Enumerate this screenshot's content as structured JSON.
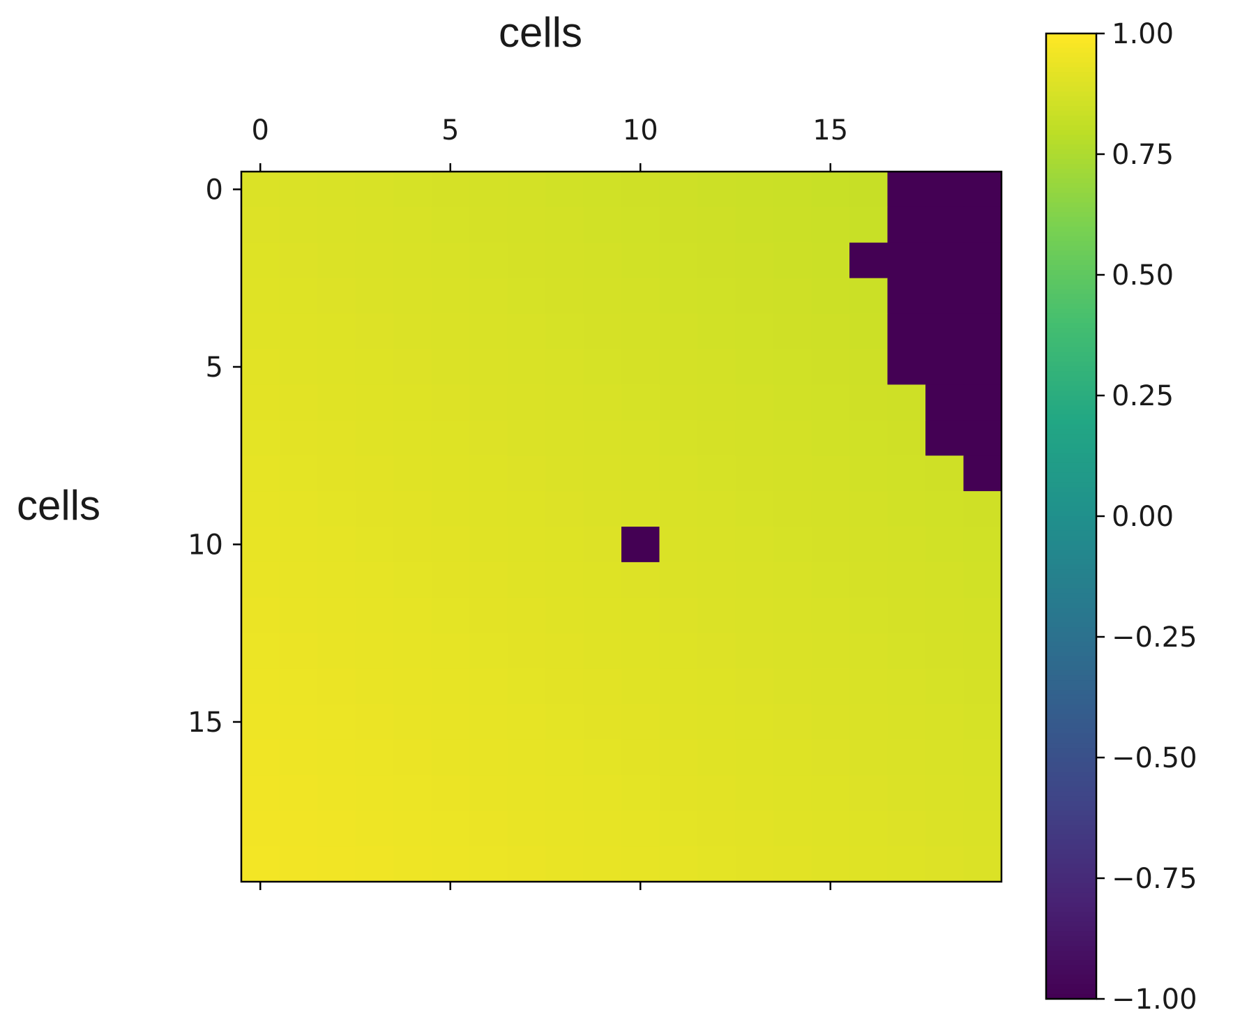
{
  "chart_data": {
    "type": "heatmap",
    "xlabel": "cells",
    "ylabel": "cells",
    "x_ticks": [
      "0",
      "5",
      "10",
      "15"
    ],
    "y_ticks": [
      "0",
      "5",
      "10",
      "15"
    ],
    "x_tick_positions": [
      0,
      5,
      10,
      15
    ],
    "y_tick_positions": [
      0,
      5,
      10,
      15
    ],
    "n_rows": 20,
    "n_cols": 20,
    "x_axis_position": "top",
    "grid": false,
    "colormap": "viridis",
    "clim": [
      -1.0,
      1.0
    ],
    "colorbar": {
      "position": "right",
      "ticks": [
        1.0,
        0.75,
        0.5,
        0.25,
        0.0,
        -0.25,
        -0.5,
        -0.75,
        -1.0
      ],
      "tick_labels": [
        "1.00",
        "0.75",
        "0.50",
        "0.25",
        "0.00",
        "−0.25",
        "−0.50",
        "−0.75",
        "−1.00"
      ]
    },
    "value_model": {
      "description": "smooth field, approx. 0.97 at bottom-left decreasing to 0.82 at top-right",
      "bottom_left": 0.97,
      "top_right": 0.82
    },
    "masked_value": -1.0,
    "masked_cells": [
      [
        0,
        17
      ],
      [
        0,
        18
      ],
      [
        0,
        19
      ],
      [
        1,
        17
      ],
      [
        1,
        18
      ],
      [
        1,
        19
      ],
      [
        2,
        16
      ],
      [
        2,
        17
      ],
      [
        2,
        18
      ],
      [
        2,
        19
      ],
      [
        3,
        17
      ],
      [
        3,
        18
      ],
      [
        3,
        19
      ],
      [
        4,
        17
      ],
      [
        4,
        18
      ],
      [
        4,
        19
      ],
      [
        5,
        17
      ],
      [
        5,
        18
      ],
      [
        5,
        19
      ],
      [
        6,
        18
      ],
      [
        6,
        19
      ],
      [
        7,
        18
      ],
      [
        7,
        19
      ],
      [
        8,
        19
      ],
      [
        10,
        10
      ]
    ]
  }
}
